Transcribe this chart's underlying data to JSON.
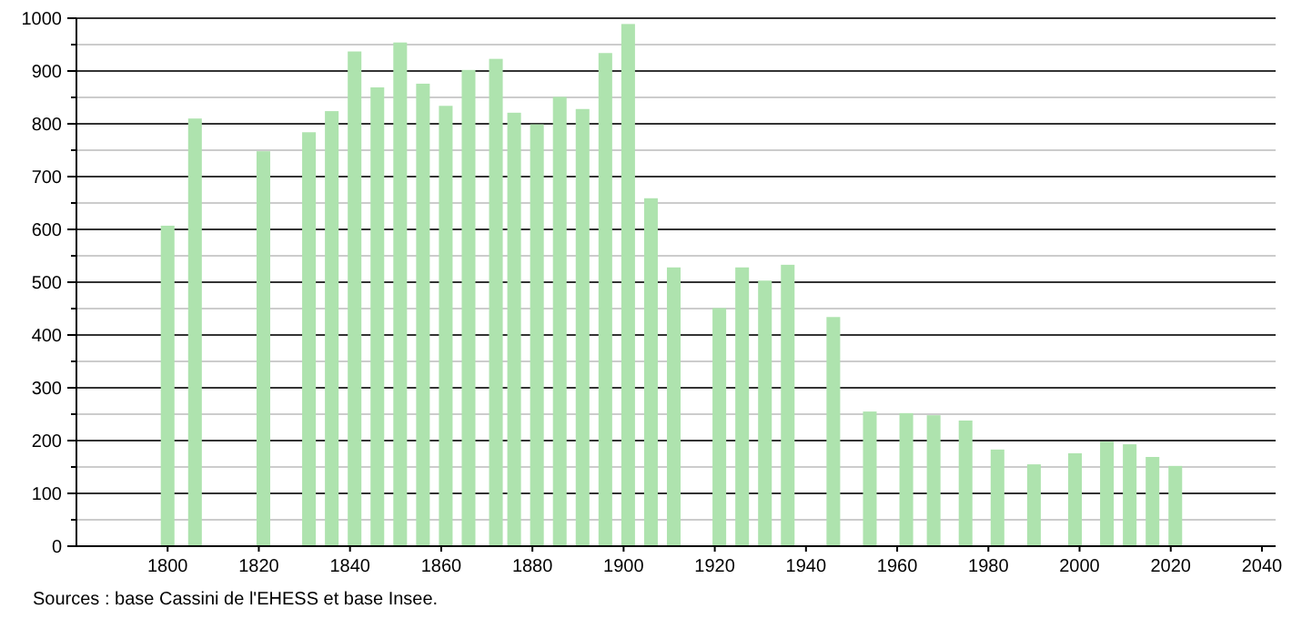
{
  "chart_data": {
    "type": "bar",
    "x": [
      1800,
      1806,
      1821,
      1831,
      1836,
      1841,
      1846,
      1851,
      1856,
      1861,
      1866,
      1872,
      1876,
      1881,
      1886,
      1891,
      1896,
      1901,
      1906,
      1911,
      1921,
      1926,
      1931,
      1936,
      1946,
      1954,
      1962,
      1968,
      1975,
      1982,
      1990,
      1999,
      2006,
      2011,
      2016,
      2021
    ],
    "values": [
      607,
      810,
      748,
      784,
      824,
      937,
      869,
      954,
      876,
      834,
      902,
      923,
      821,
      799,
      851,
      828,
      934,
      989,
      659,
      528,
      451,
      528,
      503,
      533,
      434,
      255,
      252,
      248,
      238,
      183,
      155,
      176,
      198,
      193,
      169,
      152
    ],
    "color": "#aee3ae",
    "xlim": [
      1780,
      2043
    ],
    "xticks": [
      1800,
      1820,
      1840,
      1860,
      1880,
      1900,
      1920,
      1940,
      1960,
      1980,
      2000,
      2020,
      2040
    ],
    "ylim": [
      0,
      1000
    ],
    "yticks": [
      0,
      {
        "value": 50,
        "label": null
      },
      100,
      {
        "value": 150,
        "label": null
      },
      200,
      {
        "value": 250,
        "label": null
      },
      300,
      {
        "value": 350,
        "label": null
      },
      400,
      {
        "value": 450,
        "label": null
      },
      500,
      {
        "value": 550,
        "label": null
      },
      600,
      {
        "value": 650,
        "label": null
      },
      700,
      {
        "value": 750,
        "label": null
      },
      800,
      {
        "value": 850,
        "label": null
      },
      900,
      {
        "value": 950,
        "label": null
      },
      1000
    ],
    "grid": "y",
    "annotations": [
      "Sources : base Cassini de l'EHESS et base Insee."
    ]
  }
}
